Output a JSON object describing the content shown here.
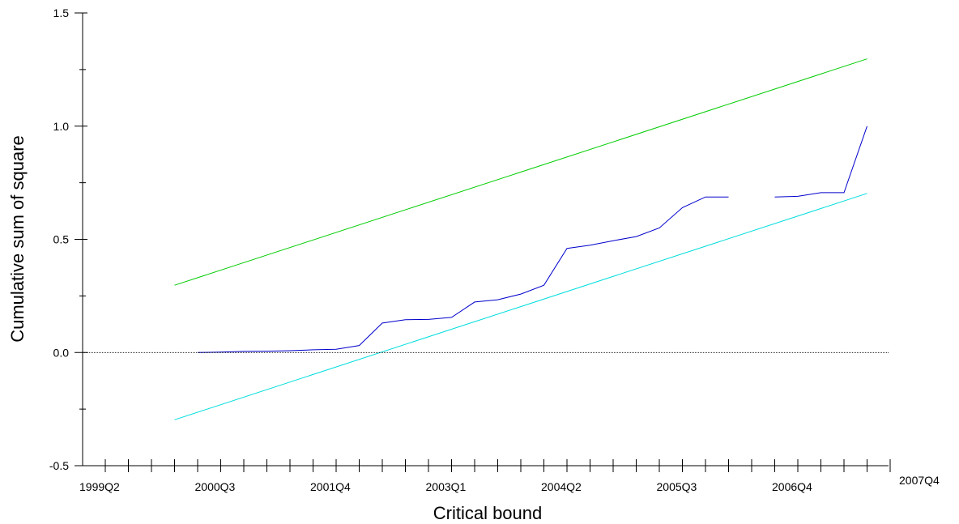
{
  "chart_data": {
    "type": "line",
    "title": "",
    "xlabel": "Critical bound",
    "ylabel": "Cumulative sum of square",
    "x_tick_labels": [
      "1999Q2",
      "2000Q3",
      "2001Q4",
      "2003Q1",
      "2004Q2",
      "2005Q3",
      "2006Q4",
      "2007Q4"
    ],
    "y_tick_labels": [
      "1.5",
      "1.0",
      "0.5",
      "0.0",
      "-0.5"
    ],
    "y_ticks": [
      1.5,
      1.0,
      0.5,
      0.0,
      -0.5
    ],
    "ylim": [
      -0.5,
      1.5
    ],
    "xlim": [
      "1999Q2",
      "2007Q4"
    ],
    "x_ticks": [
      "1999Q2",
      "1999Q3",
      "1999Q4",
      "2000Q1",
      "2000Q2",
      "2000Q3",
      "2000Q4",
      "2001Q1",
      "2001Q2",
      "2001Q3",
      "2001Q4",
      "2002Q1",
      "2002Q2",
      "2002Q3",
      "2002Q4",
      "2003Q1",
      "2003Q2",
      "2003Q3",
      "2003Q4",
      "2004Q1",
      "2004Q2",
      "2004Q3",
      "2004Q4",
      "2005Q1",
      "2005Q2",
      "2005Q3",
      "2005Q4",
      "2006Q1",
      "2006Q2",
      "2006Q3",
      "2006Q4",
      "2007Q1",
      "2007Q2",
      "2007Q3",
      "2007Q4"
    ],
    "grid": false,
    "series": [
      {
        "color": "#00cc00",
        "x": [
          "2000Q1",
          "2007Q3"
        ],
        "values": [
          0.297,
          1.297
        ]
      },
      {
        "color": "#00dddd",
        "x": [
          "2000Q1",
          "2007Q3"
        ],
        "values": [
          -0.297,
          0.703
        ]
      },
      {
        "color": "#0000cc",
        "x": [
          "2000Q2",
          "2000Q3",
          "2000Q4",
          "2001Q1",
          "2001Q2",
          "2001Q3",
          "2001Q4",
          "2002Q1",
          "2002Q2",
          "2002Q3",
          "2002Q4",
          "2003Q1",
          "2003Q2",
          "2003Q3",
          "2003Q4",
          "2004Q1",
          "2004Q2",
          "2004Q3",
          "2004Q4",
          "2005Q1",
          "2005Q2",
          "2005Q3",
          "2005Q4",
          "2006Q1",
          "2006Q2",
          "2006Q3",
          "2006Q4",
          "2007Q1",
          "2007Q2",
          "2007Q3"
        ],
        "values": [
          0.0,
          0.002,
          0.005,
          0.006,
          0.008,
          0.012,
          0.014,
          0.031,
          0.13,
          0.145,
          0.146,
          0.155,
          0.223,
          0.233,
          0.258,
          0.297,
          0.46,
          0.474,
          0.494,
          0.512,
          0.55,
          0.64,
          0.687,
          0.687,
          null,
          0.687,
          0.69,
          0.706,
          0.706,
          1.0
        ]
      },
      {
        "color": "#000000",
        "dashed": true,
        "x": [
          "1999Q2",
          "2007Q4"
        ],
        "values": [
          0.0,
          0.0
        ]
      }
    ]
  }
}
